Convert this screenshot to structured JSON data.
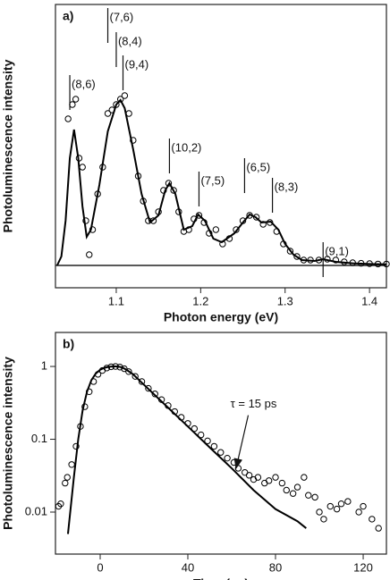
{
  "chart_data": [
    {
      "type": "line",
      "panel_label": "a)",
      "xlabel": "Photon energy (eV)",
      "ylabel": "Photoluminescence intensity",
      "xlim": [
        1.028,
        1.42
      ],
      "ylim": [
        -0.125,
        1.46
      ],
      "xticks": [
        1.1,
        1.2,
        1.3,
        1.4
      ],
      "zero_line": true,
      "series": [
        {
          "style": "line",
          "color": "#000000",
          "x": [
            1.03,
            1.035,
            1.04,
            1.045,
            1.05,
            1.055,
            1.06,
            1.065,
            1.07,
            1.08,
            1.09,
            1.1,
            1.105,
            1.11,
            1.12,
            1.13,
            1.14,
            1.15,
            1.158,
            1.163,
            1.17,
            1.18,
            1.19,
            1.197,
            1.205,
            1.215,
            1.225,
            1.24,
            1.25,
            1.258,
            1.265,
            1.272,
            1.283,
            1.292,
            1.3,
            1.31,
            1.32,
            1.335,
            1.345,
            1.36,
            1.38,
            1.4,
            1.42
          ],
          "values": [
            0.0,
            0.05,
            0.25,
            0.6,
            0.76,
            0.6,
            0.33,
            0.16,
            0.2,
            0.45,
            0.75,
            0.9,
            0.925,
            0.88,
            0.65,
            0.4,
            0.24,
            0.28,
            0.42,
            0.46,
            0.4,
            0.2,
            0.22,
            0.285,
            0.25,
            0.15,
            0.13,
            0.18,
            0.24,
            0.285,
            0.27,
            0.24,
            0.245,
            0.2,
            0.12,
            0.06,
            0.03,
            0.025,
            0.035,
            0.02,
            0.012,
            0.008,
            0.006
          ]
        },
        {
          "style": "markers",
          "color": "#000000",
          "x": [
            1.043,
            1.048,
            1.052,
            1.056,
            1.06,
            1.064,
            1.068,
            1.072,
            1.078,
            1.084,
            1.09,
            1.095,
            1.1,
            1.105,
            1.11,
            1.115,
            1.12,
            1.126,
            1.132,
            1.138,
            1.144,
            1.15,
            1.156,
            1.162,
            1.168,
            1.174,
            1.18,
            1.186,
            1.192,
            1.198,
            1.204,
            1.21,
            1.218,
            1.226,
            1.234,
            1.242,
            1.25,
            1.258,
            1.266,
            1.274,
            1.282,
            1.29,
            1.298,
            1.306,
            1.314,
            1.322,
            1.33,
            1.34,
            1.35,
            1.36,
            1.37,
            1.38,
            1.39,
            1.4,
            1.41,
            1.42
          ],
          "values": [
            0.82,
            0.9,
            0.93,
            0.6,
            0.55,
            0.25,
            0.06,
            0.2,
            0.4,
            0.55,
            0.85,
            0.87,
            0.9,
            0.93,
            0.95,
            0.85,
            0.7,
            0.5,
            0.36,
            0.25,
            0.25,
            0.3,
            0.42,
            0.46,
            0.42,
            0.3,
            0.19,
            0.2,
            0.26,
            0.28,
            0.24,
            0.18,
            0.2,
            0.12,
            0.15,
            0.2,
            0.25,
            0.28,
            0.27,
            0.23,
            0.24,
            0.19,
            0.12,
            0.08,
            0.05,
            0.03,
            0.03,
            0.03,
            0.035,
            0.03,
            0.02,
            0.015,
            0.012,
            0.01,
            0.008,
            0.008
          ]
        }
      ],
      "annotations": [
        {
          "text": "(8,6)",
          "x": 1.045,
          "y": 1.01
        },
        {
          "text": "(7,6)",
          "x": 1.09,
          "y": 1.385
        },
        {
          "text": "(8,4)",
          "x": 1.1,
          "y": 1.25
        },
        {
          "text": "(9,4)",
          "x": 1.108,
          "y": 1.12
        },
        {
          "text": "(10,2)",
          "x": 1.163,
          "y": 0.655
        },
        {
          "text": "(7,5)",
          "x": 1.198,
          "y": 0.47
        },
        {
          "text": "(6,5)",
          "x": 1.252,
          "y": 0.545
        },
        {
          "text": "(8,3)",
          "x": 1.285,
          "y": 0.435
        },
        {
          "text": "(9,1)",
          "x": 1.345,
          "y": 0.075
        }
      ]
    },
    {
      "type": "line",
      "panel_label": "b)",
      "xlabel": "Time (ps)",
      "ylabel": "Photoluminescence intensity",
      "xlim": [
        -20.4,
        130.6
      ],
      "ylim": [
        0.00265,
        2.93
      ],
      "ylog": true,
      "xticks": [
        0,
        40,
        80,
        120
      ],
      "yticks": [
        1,
        0.1,
        0.01
      ],
      "series": [
        {
          "style": "line",
          "color": "#000000",
          "x": [
            -14.7,
            -12,
            -10,
            -8,
            -6,
            -4,
            -2,
            0,
            2,
            4,
            6,
            8,
            10,
            12,
            15,
            20,
            30,
            40,
            50,
            60,
            70,
            80,
            90,
            94
          ],
          "values": [
            0.005,
            0.03,
            0.1,
            0.25,
            0.45,
            0.65,
            0.8,
            0.9,
            0.96,
            0.99,
            1.0,
            1.0,
            0.97,
            0.9,
            0.78,
            0.56,
            0.29,
            0.15,
            0.077,
            0.04,
            0.02,
            0.011,
            0.0075,
            0.006
          ]
        },
        {
          "style": "markers",
          "color": "#000000",
          "x": [
            -19,
            -18,
            -16,
            -15,
            -13,
            -11,
            -9,
            -7,
            -5,
            -3,
            -1,
            1,
            3,
            5,
            7,
            9,
            11,
            13,
            16,
            19,
            22,
            25,
            28,
            31,
            34,
            37,
            40,
            43,
            46,
            49,
            52,
            55,
            58,
            61,
            63,
            66,
            68,
            70,
            72,
            75,
            77,
            80,
            83,
            85,
            88,
            90,
            93,
            95,
            98,
            100,
            102,
            105,
            108,
            110,
            113,
            118,
            120,
            124,
            127
          ],
          "values": [
            0.012,
            0.013,
            0.025,
            0.03,
            0.045,
            0.08,
            0.15,
            0.28,
            0.45,
            0.62,
            0.78,
            0.88,
            0.95,
            0.99,
            1.0,
            0.98,
            0.93,
            0.85,
            0.73,
            0.62,
            0.5,
            0.42,
            0.35,
            0.29,
            0.24,
            0.2,
            0.165,
            0.14,
            0.115,
            0.095,
            0.08,
            0.066,
            0.055,
            0.048,
            0.04,
            0.035,
            0.032,
            0.028,
            0.03,
            0.025,
            0.027,
            0.03,
            0.025,
            0.02,
            0.018,
            0.022,
            0.03,
            0.017,
            0.016,
            0.01,
            0.008,
            0.012,
            0.011,
            0.013,
            0.014,
            0.01,
            0.012,
            0.008,
            0.006
          ]
        }
      ],
      "annotations": [
        {
          "text": "τ = 15 ps",
          "x": 70,
          "y": 0.3,
          "arrow_x": 62,
          "arrow_y": 0.04
        }
      ]
    }
  ]
}
